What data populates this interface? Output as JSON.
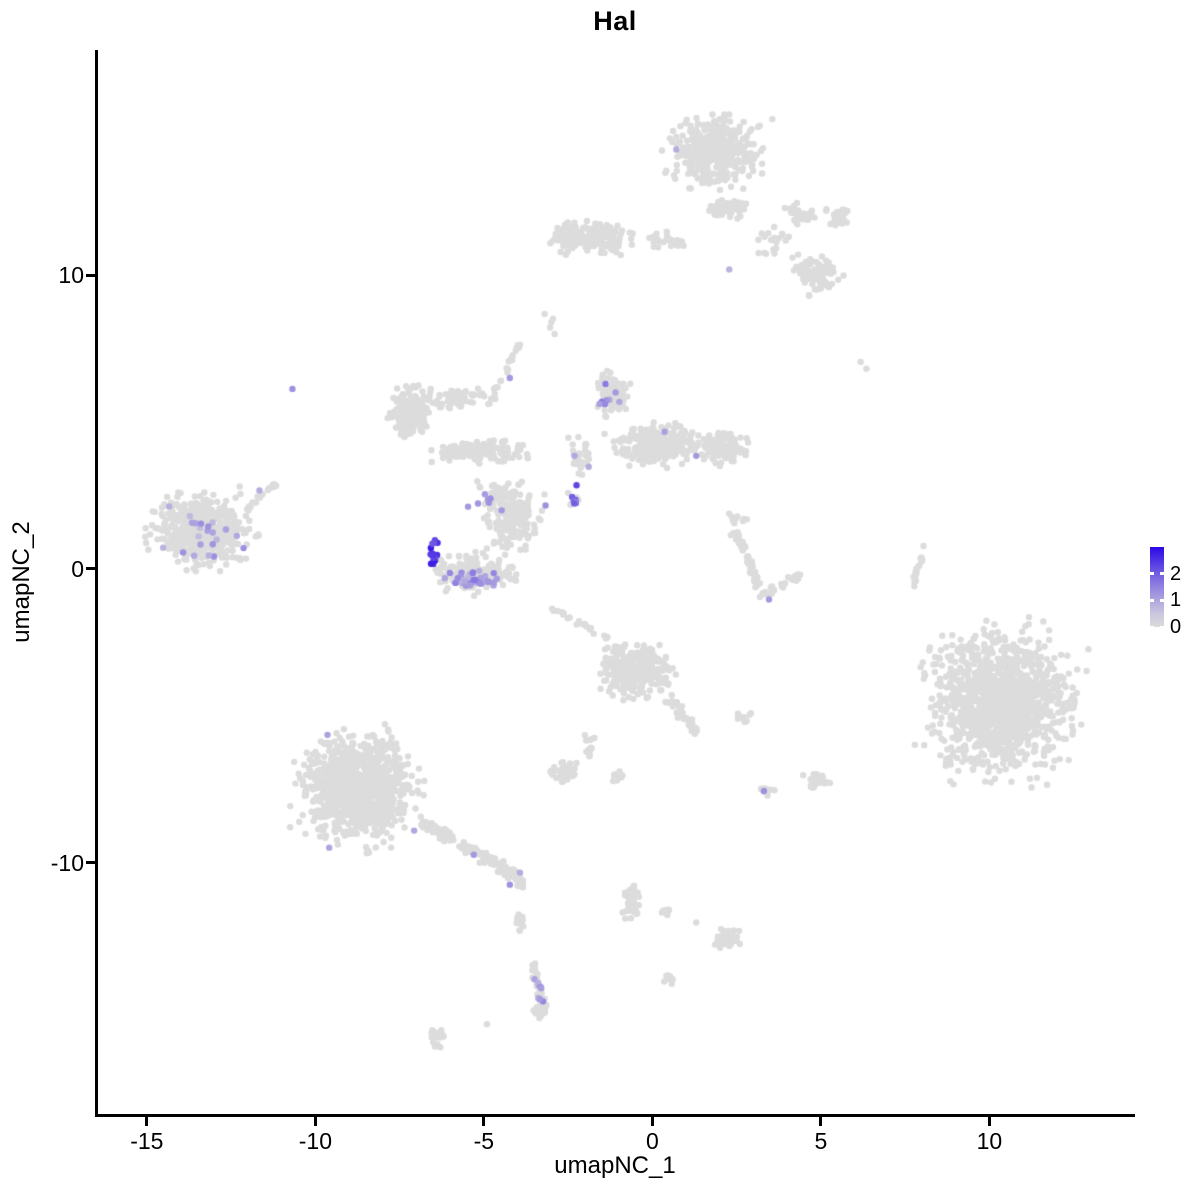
{
  "title": "Hal",
  "axes": {
    "x": {
      "label": "umapNC_1",
      "ticks": [
        -15,
        -10,
        -5,
        0,
        5,
        10
      ]
    },
    "y": {
      "label": "umapNC_2",
      "ticks": [
        10,
        0,
        -10
      ]
    }
  },
  "legend": {
    "ticks": [
      2,
      1,
      0
    ],
    "vmin": 0,
    "vmax": 3
  },
  "colors": {
    "low": "#DCDCDC",
    "high": "#2B09E6",
    "background": "#FFFFFF",
    "axis": "#000000"
  },
  "chart_data": {
    "type": "scatter",
    "title": "Hal",
    "xlabel": "umapNC_1",
    "ylabel": "umapNC_2",
    "x_range": [
      -16.45,
      14.32
    ],
    "y_range": [
      -18.56,
      17.67
    ],
    "grid": false,
    "legend_position": "right",
    "point_radius_px": 3.2,
    "seed": 42,
    "gray_clusters": [
      [
        1.89,
        14.2,
        1.75,
        1.55,
        430
      ],
      [
        2.19,
        12.24,
        0.9,
        0.45,
        55
      ],
      [
        4.41,
        12.07,
        0.62,
        0.5,
        45
      ],
      [
        5.53,
        11.97,
        0.5,
        0.42,
        28
      ],
      [
        4.85,
        10.03,
        0.95,
        0.95,
        85
      ],
      [
        3.52,
        11.22,
        0.7,
        0.75,
        20
      ],
      [
        -1.95,
        11.29,
        1.6,
        0.75,
        170
      ],
      [
        0.27,
        11.22,
        0.9,
        0.5,
        26
      ],
      [
        -3.05,
        8.44,
        0.18,
        0.35,
        4
      ],
      [
        -7.13,
        5.38,
        0.8,
        1.25,
        180
      ],
      [
        -5.8,
        5.79,
        0.9,
        0.5,
        55
      ],
      [
        -5.06,
        4.02,
        1.75,
        0.55,
        150
      ],
      [
        -1.21,
        5.96,
        0.65,
        1.05,
        95
      ],
      [
        0.12,
        4.26,
        1.6,
        0.9,
        280
      ],
      [
        2.04,
        4.09,
        1.0,
        0.75,
        110
      ],
      [
        -2.1,
        3.75,
        0.45,
        1.05,
        30
      ],
      [
        -2.28,
        2.35,
        0.35,
        0.35,
        8
      ],
      [
        -4.17,
        1.71,
        1.05,
        1.45,
        180
      ],
      [
        -5.21,
        -0.15,
        1.6,
        0.85,
        180
      ],
      [
        -4.76,
        2.56,
        0.65,
        0.5,
        18
      ],
      [
        -13.34,
        1.27,
        1.85,
        1.65,
        540
      ],
      [
        2.63,
        1.71,
        0.55,
        0.35,
        10
      ],
      [
        10.33,
        -4.6,
        2.9,
        3.1,
        1300
      ],
      [
        -0.47,
        -3.45,
        1.35,
        1.15,
        310
      ],
      [
        -1.8,
        -6.1,
        0.35,
        0.7,
        13
      ],
      [
        -2.63,
        -6.88,
        0.55,
        0.5,
        42
      ],
      [
        -1.04,
        -7.11,
        0.32,
        0.28,
        12
      ],
      [
        2.72,
        -5.04,
        0.32,
        0.24,
        12
      ],
      [
        4.88,
        -7.22,
        0.5,
        0.36,
        26
      ],
      [
        3.37,
        -7.56,
        0.36,
        0.26,
        13
      ],
      [
        -8.76,
        -7.45,
        2.2,
        2.35,
        980
      ],
      [
        -3.93,
        -11.93,
        0.24,
        0.55,
        12
      ],
      [
        -3.37,
        -15.09,
        0.28,
        0.28,
        10
      ],
      [
        -6.33,
        -15.94,
        0.36,
        0.5,
        22
      ],
      [
        -0.59,
        -11.36,
        0.36,
        0.9,
        40
      ],
      [
        0.47,
        -11.7,
        0.36,
        0.17,
        8
      ],
      [
        2.19,
        -12.58,
        0.55,
        0.44,
        48
      ],
      [
        0.56,
        -13.94,
        0.28,
        0.24,
        12
      ]
    ],
    "gray_lines": [
      [
        -4.85,
        5.55,
        -3.96,
        7.66,
        0.12,
        26
      ],
      [
        -3.05,
        -1.27,
        -1.27,
        -2.43,
        0.1,
        22
      ],
      [
        -12.25,
        1.82,
        -11.21,
        2.9,
        0.12,
        20
      ],
      [
        2.43,
        1.31,
        3.28,
        -0.93,
        0.2,
        46
      ],
      [
        3.28,
        -0.93,
        4.41,
        -0.15,
        0.16,
        28
      ],
      [
        7.72,
        -0.59,
        8.11,
        0.97,
        0.1,
        16
      ],
      [
        0.5,
        -4.4,
        1.3,
        -5.59,
        0.25,
        36
      ],
      [
        -6.83,
        -8.64,
        -3.73,
        -10.68,
        0.3,
        150
      ],
      [
        -3.52,
        -13.4,
        -3.2,
        -15.2,
        0.16,
        40
      ]
    ],
    "gray_singles": [
      [
        -4.91,
        -15.5
      ],
      [
        1.3,
        -12.04
      ],
      [
        6.18,
        7.05
      ],
      [
        6.35,
        6.82
      ],
      [
        -2.9,
        8.0
      ]
    ],
    "feature_clusters": [
      [
        -6.48,
        0.45,
        0.16,
        0.7,
        16,
        2.0,
        3.0
      ],
      [
        -5.35,
        -0.35,
        1.15,
        0.55,
        34,
        0.7,
        1.7
      ],
      [
        -4.8,
        2.3,
        0.55,
        0.6,
        6,
        0.9,
        1.4
      ],
      [
        -13.3,
        1.2,
        1.5,
        1.25,
        22,
        0.6,
        1.4
      ],
      [
        -2.28,
        2.32,
        0.2,
        0.28,
        7,
        1.3,
        2.1
      ],
      [
        -3.35,
        -14.35,
        0.18,
        0.85,
        8,
        0.8,
        1.5
      ],
      [
        -1.35,
        5.9,
        0.35,
        0.45,
        5,
        0.9,
        1.6
      ]
    ],
    "feature_points": [
      [
        -10.68,
        6.13,
        1.3
      ],
      [
        0.71,
        14.28,
        0.9
      ],
      [
        2.28,
        10.2,
        0.8
      ],
      [
        3.46,
        -1.04,
        1.2
      ],
      [
        3.31,
        -7.56,
        1.3
      ],
      [
        -9.64,
        -5.65,
        1.1
      ],
      [
        -9.59,
        -9.49,
        1.0
      ],
      [
        -7.07,
        -8.91,
        1.0
      ],
      [
        -5.3,
        -9.73,
        1.2
      ],
      [
        -4.23,
        -10.75,
        1.3
      ],
      [
        -3.93,
        -10.34,
        0.9
      ],
      [
        -3.17,
        2.16,
        1.3
      ],
      [
        -2.25,
        2.85,
        2.3
      ],
      [
        -2.31,
        3.85,
        1.0
      ],
      [
        -1.89,
        3.48,
        0.9
      ],
      [
        0.36,
        4.67,
        1.1
      ],
      [
        1.3,
        3.85,
        1.2
      ],
      [
        -1.39,
        6.3,
        1.6
      ],
      [
        -1.57,
        5.62,
        1.1
      ],
      [
        -0.98,
        5.69,
        1.0
      ],
      [
        -4.23,
        6.5,
        1.2
      ],
      [
        -5.47,
        2.12,
        1.2
      ],
      [
        -11.66,
        2.67,
        0.9
      ]
    ]
  }
}
